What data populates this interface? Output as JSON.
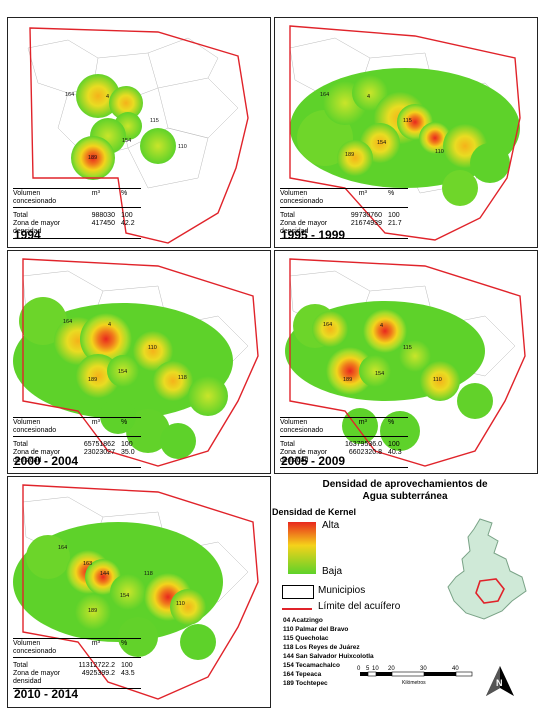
{
  "legend": {
    "title_line1": "Densidad de aprovechamientos de",
    "title_line2": "Agua subterránea",
    "kernel_title": "Densidad de Kernel",
    "high": "Alta",
    "low": "Baja",
    "municipios": "Municipios",
    "limite": "Límite del acuífero",
    "colors": {
      "high": "#e8281e",
      "mid": "#f5d21a",
      "low": "#5ed22a",
      "boundary": "#e0232a"
    }
  },
  "municipality_codes": [
    "04 Acatzingo",
    "110 Palmar del Bravo",
    "115 Quecholac",
    "118 Los Reyes de Juárez",
    "144 San Salvador Huixcolotla",
    "154 Tecamachalco",
    "164 Tepeaca",
    "189 Tochtepec"
  ],
  "scale_bar": {
    "ticks": [
      "0",
      "5",
      "10",
      "20",
      "30",
      "40"
    ],
    "unit": "Kilómetros"
  },
  "north_arrow": "N",
  "panels": [
    {
      "period": "1994",
      "table": {
        "h1": "Volumen concesionado",
        "h2": "m³",
        "h3": "%",
        "r1": [
          "Total",
          "988030",
          "100"
        ],
        "r2": [
          "Zona de mayor",
          "417450",
          "42.2"
        ],
        "r3": "densidad"
      },
      "labels": [
        "164",
        "4",
        "115",
        "154",
        "110",
        "189"
      ]
    },
    {
      "period": "1995 - 1999",
      "table": {
        "h1": "Volumen concesionado",
        "h2": "m³",
        "h3": "%",
        "r1": [
          "Total",
          "99730760",
          "100"
        ],
        "r2": [
          "Zona de mayor",
          "21674939",
          "21.7"
        ],
        "r3": "densidad"
      },
      "labels": [
        "164",
        "4",
        "115",
        "154",
        "110",
        "189"
      ]
    },
    {
      "period": "2000 - 2004",
      "table": {
        "h1": "Volumen concesionado",
        "h2": "m³",
        "h3": "%",
        "r1": [
          "Total",
          "65751862",
          "100"
        ],
        "r2": [
          "Zona de mayor",
          "23023027",
          "35.0"
        ],
        "r3": "densidad"
      },
      "labels": [
        "164",
        "4",
        "110",
        "154",
        "118",
        "189"
      ]
    },
    {
      "period": "2005 - 2009",
      "table": {
        "h1": "Volumen concesionado",
        "h2": "m³",
        "h3": "%",
        "r1": [
          "Total",
          "16379536.0",
          "100"
        ],
        "r2": [
          "Zona de mayor",
          "6602320.8",
          "40.3"
        ],
        "r3": "densidad"
      },
      "labels": [
        "164",
        "4",
        "115",
        "154",
        "110",
        "189"
      ]
    },
    {
      "period": "2010 - 2014",
      "table": {
        "h1": "Volumen concesionado",
        "h2": "m³",
        "h3": "%",
        "r1": [
          "Total",
          "11312722.2",
          "100"
        ],
        "r2": [
          "Zona de mayor",
          "4925399.2",
          "43.5"
        ],
        "r3": "densidad"
      },
      "labels": [
        "164",
        "163",
        "144",
        "118",
        "154",
        "110",
        "189"
      ]
    }
  ]
}
